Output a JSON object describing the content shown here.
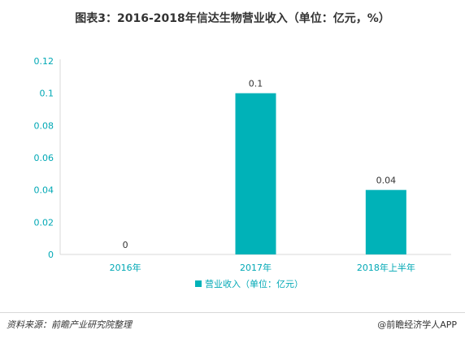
{
  "title": "图表3：2016-2018年信达生物营业收入（单位：亿元，%）",
  "source": "资料来源：前瞻产业研究院整理",
  "brand": "@前瞻经济学人APP",
  "colors": {
    "bar": "#00b2b8",
    "axis_text": "#00a8b5",
    "grid": "#d9d9d9"
  },
  "chart_data": {
    "type": "bar",
    "title": "图表3：2016-2018年信达生物营业收入（单位：亿元，%）",
    "categories": [
      "2016年",
      "2017年",
      "2018年上半年"
    ],
    "series": [
      {
        "name": "营业收入（单位：亿元）",
        "values": [
          0,
          0.1,
          0.04
        ]
      }
    ],
    "data_labels": [
      "0",
      "0.1",
      "0.04"
    ],
    "yticks": [
      "0",
      "0.02",
      "0.04",
      "0.06",
      "0.08",
      "0.1",
      "0.12"
    ],
    "ylim": [
      0,
      0.12
    ],
    "grid": false,
    "legend_position": "bottom"
  }
}
